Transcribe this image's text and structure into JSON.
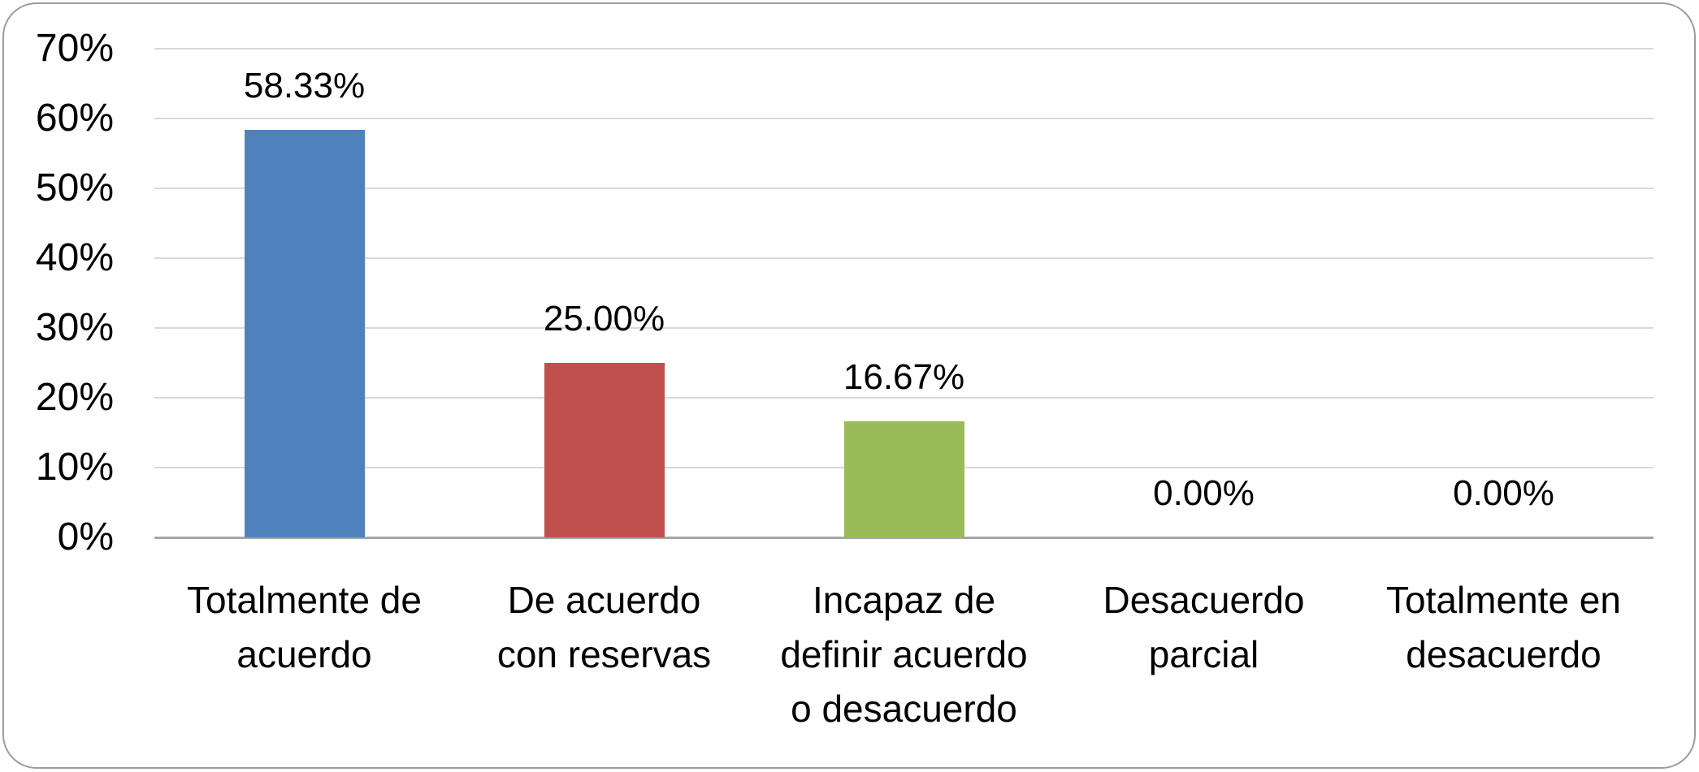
{
  "chart_data": {
    "type": "bar",
    "title": "",
    "categories": [
      "Totalmente de\nacuerdo",
      "De acuerdo\ncon reservas",
      "Incapaz de\ndefinir acuerdo\no desacuerdo",
      "Desacuerdo\nparcial",
      "Totalmente en\ndesacuerdo"
    ],
    "values": [
      58.33,
      25.0,
      16.67,
      0.0,
      0.0
    ],
    "value_labels": [
      "58.33%",
      "25.00%",
      "16.67%",
      "0.00%",
      "0.00%"
    ],
    "bar_colors": [
      "#4F81BD",
      "#C0504D",
      "#9BBB59",
      null,
      null
    ],
    "yticks": [
      "70%",
      "60%",
      "50%",
      "40%",
      "30%",
      "20%",
      "10%",
      "0%"
    ],
    "ylim": [
      0,
      70
    ],
    "ytick_step": 10,
    "grid": true,
    "legend": "none",
    "xlabel": "",
    "ylabel": "",
    "style": {
      "gridline_color": "#D9D9D9",
      "axis_line_color": "#A6A6A6",
      "frame_border_color": "#9C9C9C",
      "text_color": "#000000",
      "background": "#FFFFFF"
    }
  }
}
